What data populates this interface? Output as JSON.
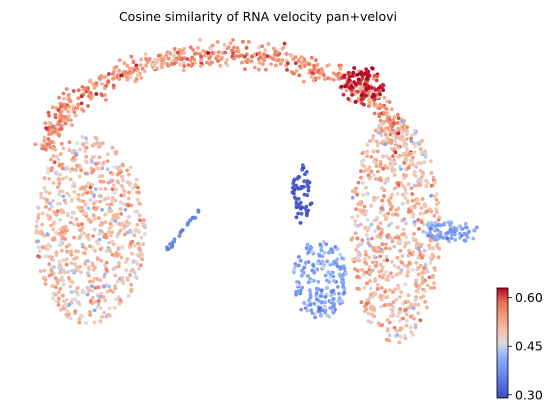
{
  "chart_data": {
    "type": "scatter",
    "title": "Cosine similarity of RNA velocity pan+velovi",
    "xlabel": "",
    "ylabel": "",
    "grid": false,
    "axes_visible": false,
    "colormap": "coolwarm",
    "colorbar": {
      "vmin": 0.29,
      "vmax": 0.63,
      "ticks": [
        0.3,
        0.45,
        0.6
      ],
      "tick_labels": [
        "0.30",
        "0.45",
        "0.60"
      ]
    },
    "embedding_regions": [
      {
        "name": "left-lobe",
        "x": [
          -4.8,
          -2.5
        ],
        "y": [
          -4.2,
          1.8
        ],
        "color_value": 0.5
      },
      {
        "name": "top-arc",
        "x": [
          -2.7,
          2.4
        ],
        "y": [
          1.0,
          4.2
        ],
        "color_value": 0.55
      },
      {
        "name": "top-right-hotspot",
        "x": [
          1.9,
          2.8
        ],
        "y": [
          2.8,
          3.9
        ],
        "color_value": 0.62
      },
      {
        "name": "right-lobe",
        "x": [
          1.1,
          3.6
        ],
        "y": [
          -4.9,
          2.7
        ],
        "color_value": 0.5
      },
      {
        "name": "right-tail",
        "x": [
          3.4,
          5.0
        ],
        "y": [
          -0.6,
          0.2
        ],
        "color_value": 0.4
      },
      {
        "name": "center-column",
        "x": [
          -0.2,
          1.6
        ],
        "y": [
          -3.8,
          0.8
        ],
        "color_value": 0.4
      },
      {
        "name": "center-blue-cluster",
        "x": [
          -0.1,
          0.4
        ],
        "y": [
          -0.6,
          0.9
        ],
        "color_value": 0.31
      },
      {
        "name": "left-thin-branch",
        "x": [
          -2.4,
          -1.3
        ],
        "y": [
          -1.6,
          -0.2
        ],
        "color_value": 0.36
      }
    ]
  }
}
